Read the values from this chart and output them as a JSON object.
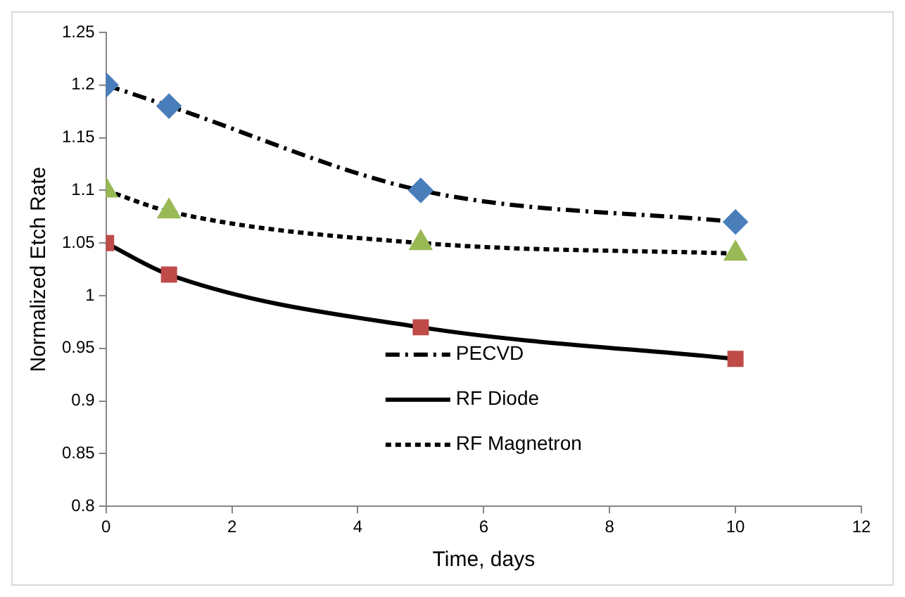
{
  "chart_data": {
    "type": "line",
    "xlabel": "Time, days",
    "ylabel": "Normalized Etch Rate",
    "xlim": [
      0,
      12
    ],
    "xticks": [
      0,
      2,
      4,
      6,
      8,
      10,
      12
    ],
    "ylim": [
      0.8,
      1.25
    ],
    "yticks": [
      0.8,
      0.85,
      0.9,
      0.95,
      1,
      1.05,
      1.1,
      1.15,
      1.2,
      1.25
    ],
    "grid": false,
    "legend": "bottom",
    "x": [
      0,
      1,
      5,
      10
    ],
    "series": [
      {
        "name": "PECVD",
        "color": "#4a7ebb",
        "marker": "diamond",
        "line_style": "dashed",
        "values": [
          1.2,
          1.18,
          1.1,
          1.07
        ]
      },
      {
        "name": "RF Diode",
        "color": "#be4b48",
        "marker": "square",
        "line_style": "solid",
        "values": [
          1.05,
          1.02,
          0.97,
          0.94
        ]
      },
      {
        "name": "RF Magnetron",
        "color": "#98b954",
        "marker": "triangle",
        "line_style": "dotted",
        "values": [
          1.1,
          1.08,
          1.05,
          1.04
        ]
      }
    ]
  }
}
